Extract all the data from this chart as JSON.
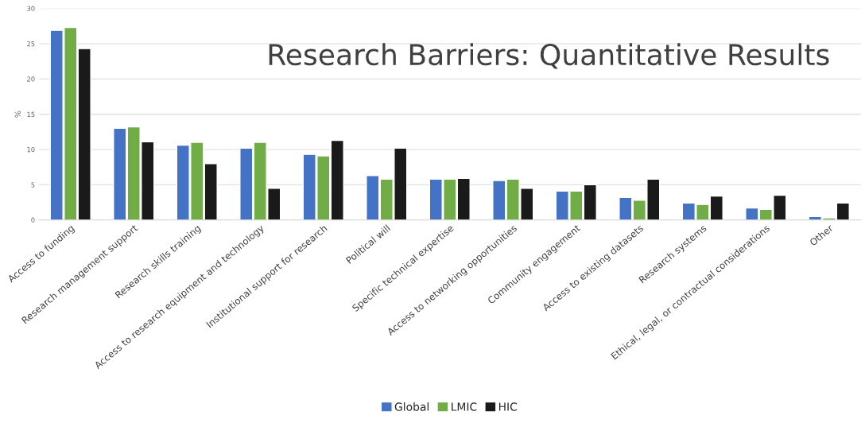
{
  "chart_data": {
    "type": "bar",
    "title": "Research Barriers: Quantitative Results",
    "ylabel": "%",
    "categories": [
      "Access to funding",
      "Research management support",
      "Research skills training",
      "Access to research equipment and technology",
      "Institutional support for research",
      "Political will",
      "Specific technical expertise",
      "Access to networking opportunities",
      "Community engagement",
      "Access to existing datasets",
      "Research systems",
      "Ethical, legal, or contractual considerations",
      "Other"
    ],
    "series": [
      {
        "name": "Global",
        "color": "#4472c4",
        "values": [
          26.9,
          13.0,
          10.6,
          10.2,
          9.3,
          6.3,
          5.8,
          5.6,
          4.1,
          3.2,
          2.4,
          1.7,
          0.5
        ]
      },
      {
        "name": "LMIC",
        "color": "#70ad47",
        "values": [
          27.3,
          13.2,
          11.0,
          11.0,
          9.1,
          5.8,
          5.8,
          5.8,
          4.1,
          2.8,
          2.2,
          1.5,
          0.3
        ]
      },
      {
        "name": "HIC",
        "color": "#1a1a1a",
        "values": [
          24.3,
          11.1,
          8.0,
          4.5,
          11.3,
          10.2,
          5.9,
          4.5,
          5.0,
          5.8,
          3.4,
          3.5,
          2.4
        ]
      }
    ],
    "ylim": [
      0,
      30
    ],
    "yticks": [
      0,
      5,
      10,
      15,
      20,
      25,
      30
    ],
    "grid": "y",
    "legend": "bottom"
  }
}
